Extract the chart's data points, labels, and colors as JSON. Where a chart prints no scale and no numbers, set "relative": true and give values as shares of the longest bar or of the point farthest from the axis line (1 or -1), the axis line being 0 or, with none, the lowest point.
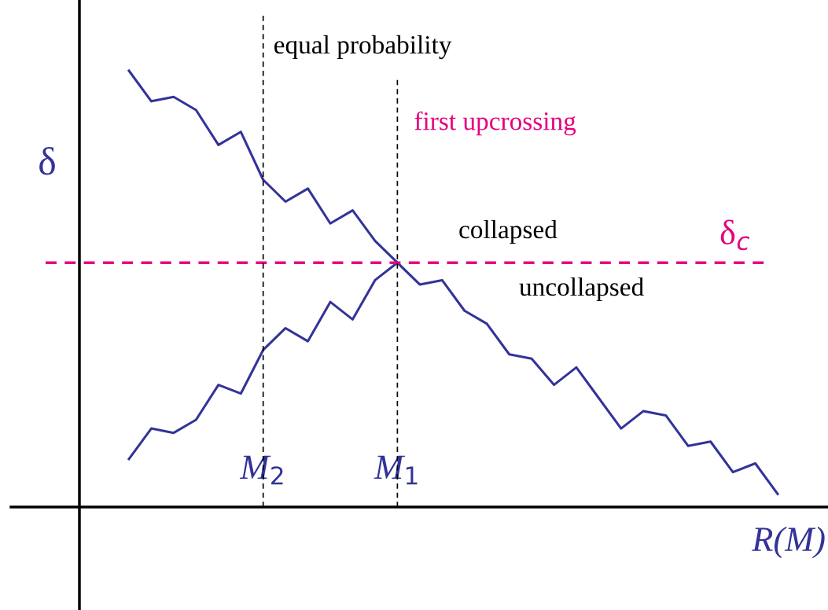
{
  "chart_data": {
    "type": "line",
    "relative": true,
    "categories": [
      null,
      null,
      null,
      null,
      null,
      null,
      "M$_{2}$",
      null,
      null,
      null,
      null,
      null,
      "M$_{1}$",
      null,
      null,
      null,
      null,
      null,
      null,
      null,
      null,
      null,
      null,
      null,
      null,
      null,
      null,
      null,
      null,
      null
    ],
    "series": [
      {
        "color": "#333399",
        "values": [
          1.0,
          0.93,
          0.94,
          0.91,
          0.83,
          0.86,
          0.75,
          0.7,
          0.73,
          0.65,
          0.68,
          0.61,
          0.56,
          0.51,
          0.52,
          0.45,
          0.42,
          0.35,
          0.34,
          0.28,
          0.32,
          0.25,
          0.18,
          0.22,
          0.21,
          0.14,
          0.15,
          0.08,
          0.1,
          0.03
        ]
      },
      {
        "color": "#333399",
        "values": [
          0.11,
          0.18,
          0.17,
          0.2,
          0.28,
          0.26,
          0.36,
          0.41,
          0.38,
          0.47,
          0.43,
          0.52,
          0.56,
          null,
          null,
          null,
          null,
          null,
          null,
          null,
          null,
          null,
          null,
          null,
          null,
          null,
          null,
          null,
          null,
          null
        ]
      }
    ],
    "xlabel": "R(M)",
    "ylabel": "δ",
    "ref_lines": [
      {
        "axis": "y",
        "value": 0.56,
        "label": "δ$_{c}$",
        "color": "#e6007e",
        "line_style": "dashed"
      },
      {
        "axis": "x",
        "value": "M$_{2}$",
        "label": "equal probability",
        "color": "#000000",
        "line_style": "dashed"
      },
      {
        "axis": "x",
        "value": "M$_{1}$",
        "label": "first upcrossing",
        "color": "#000000",
        "line_style": "dashed"
      }
    ],
    "annotations": [
      "collapsed",
      "uncollapsed"
    ],
    "grid": false,
    "legend": false,
    "marker": "none",
    "line_style": "solid"
  }
}
